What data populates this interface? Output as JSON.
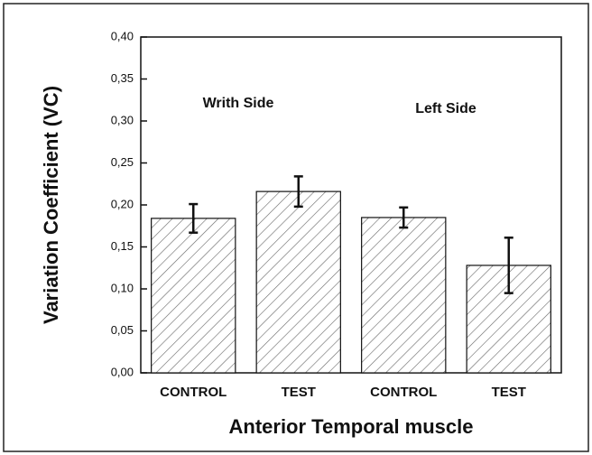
{
  "chart_data": {
    "type": "bar",
    "xlabel": "Anterior Temporal muscle",
    "ylabel": "Variation Coefficient (VC)",
    "categories": [
      "CONTROL",
      "TEST",
      "CONTROL",
      "TEST"
    ],
    "values": [
      0.184,
      0.216,
      0.185,
      0.128
    ],
    "errors": [
      0.017,
      0.018,
      0.012,
      0.033
    ],
    "color": "#555555",
    "ylim": [
      0,
      0.4
    ],
    "yticks": [
      {
        "value": 0,
        "label": "0,00"
      },
      {
        "value": 0.05,
        "label": "0,05"
      },
      {
        "value": 0.1,
        "label": "0,10"
      },
      {
        "value": 0.15,
        "label": "0,15"
      },
      {
        "value": 0.2,
        "label": "0,20"
      },
      {
        "value": 0.25,
        "label": "0,25"
      },
      {
        "value": 0.3,
        "label": "0,30"
      },
      {
        "value": 0.35,
        "label": "0,35"
      },
      {
        "value": 0.4,
        "label": "0,40"
      }
    ],
    "annotations": [
      "Writh Side",
      "Left Side"
    ]
  }
}
